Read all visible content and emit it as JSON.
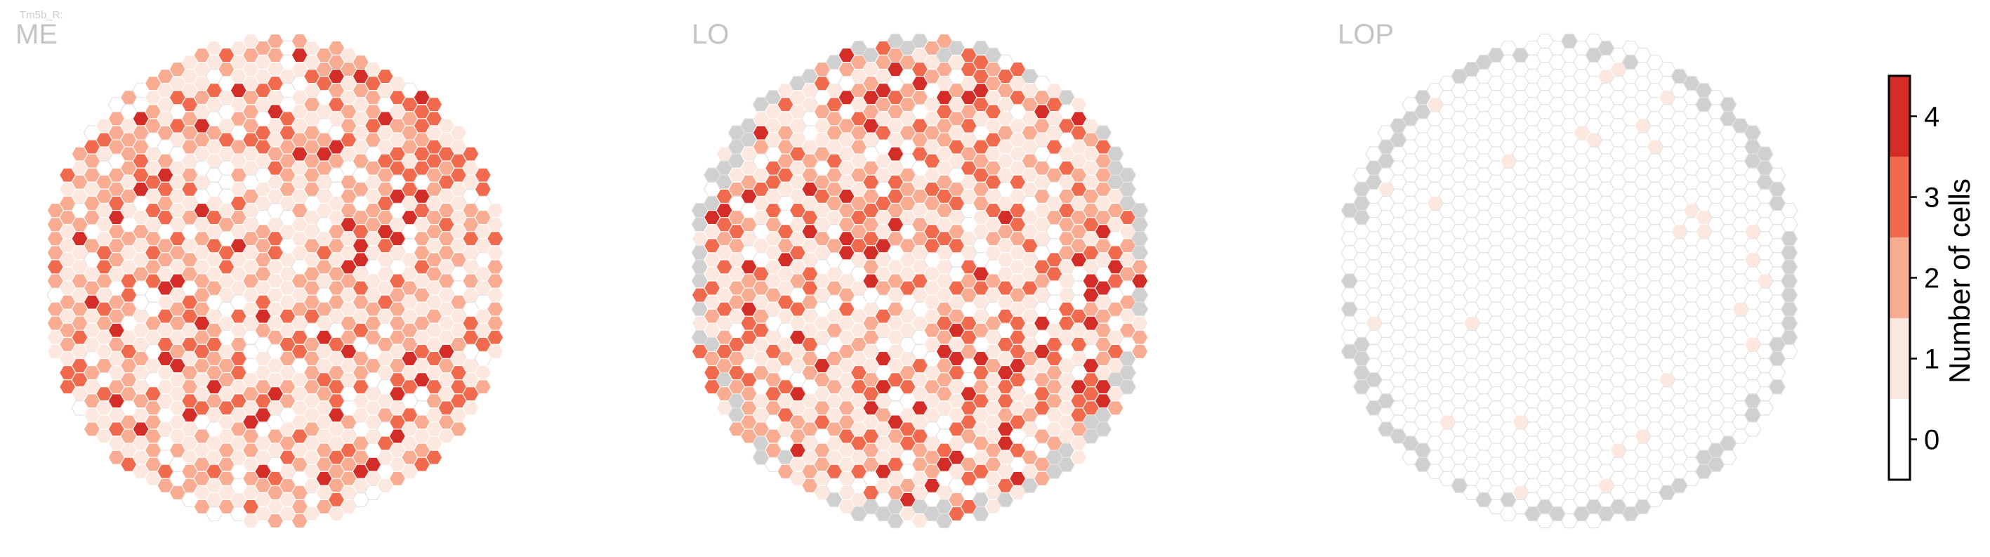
{
  "figure": {
    "subtitle": "Tm5b_R:"
  },
  "colors": {
    "zero": "#ffffff",
    "one": "#fde8e0",
    "two": "#f9ac91",
    "three": "#f26a4e",
    "four": "#d42c26",
    "no_column": "#d0d0d0",
    "hex_edge": "#e2e2e2",
    "title": "#c4c4c4"
  },
  "chart_data": [
    {
      "type": "heatmap",
      "title": "ME",
      "value_distribution": {
        "0": 0.12,
        "1": 0.37,
        "2": 0.29,
        "3": 0.16,
        "4": 0.06
      },
      "seed": 11
    },
    {
      "type": "heatmap",
      "title": "LO",
      "value_distribution": {
        "0": 0.14,
        "1": 0.36,
        "2": 0.28,
        "3": 0.16,
        "4": 0.06
      },
      "empty_border_columns": true,
      "seed": 23
    },
    {
      "type": "heatmap",
      "title": "LOP",
      "value_distribution": {
        "0": 0.98,
        "1": 0.02
      },
      "empty_border_columns": true,
      "seed": 37
    }
  ],
  "colorbar": {
    "label": "Number of cells",
    "ticks": [
      "0",
      "1",
      "2",
      "3",
      "4"
    ],
    "range": [
      -0.5,
      4.5
    ]
  }
}
